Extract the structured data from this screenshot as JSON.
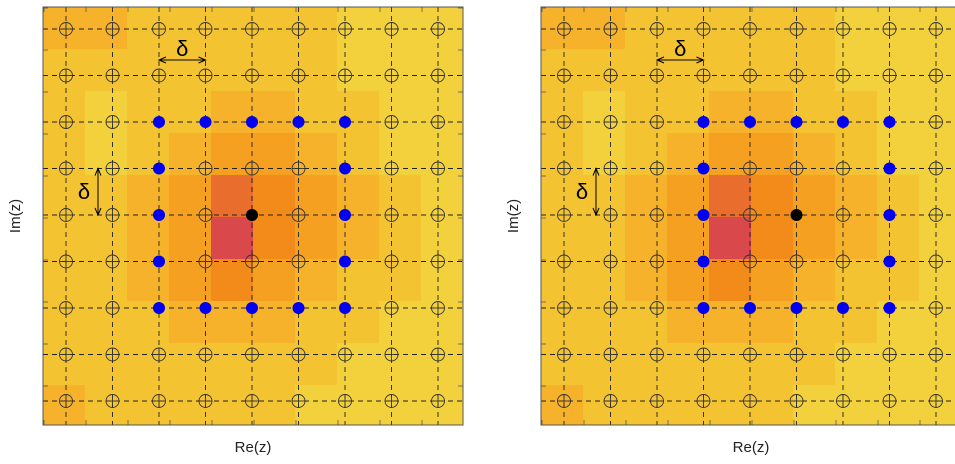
{
  "colors": {
    "background": "#ffffff",
    "panel_border": "#555555",
    "grid": "#222222",
    "open_marker": "#333333",
    "blue_marker": "#0000ee",
    "black_marker": "#000000",
    "heat_palette": [
      "#f2d13c",
      "#f4c332",
      "#f5b22a",
      "#f6a021",
      "#f38b1a",
      "#e96d2c",
      "#d9484a"
    ]
  },
  "panels": [
    {
      "id": "left",
      "xlabel": "Re(z)",
      "ylabel": "Im(z)",
      "delta_horizontal": "δ",
      "delta_vertical": "δ",
      "center": [
        5,
        5
      ],
      "ring_radius": 2,
      "heat_peak": [
        5,
        5
      ]
    },
    {
      "id": "right",
      "xlabel": "Re(z)",
      "ylabel": "Im(z)",
      "delta_horizontal": "δ",
      "delta_vertical": "δ",
      "center": [
        6,
        5
      ],
      "ring_radius": 2,
      "heat_peak": [
        5,
        5
      ]
    }
  ],
  "lattice": {
    "columns": 9,
    "rows": 9
  },
  "heat_levels": [
    [
      2,
      2,
      1,
      1,
      1,
      1,
      1,
      0,
      0,
      0
    ],
    [
      1,
      1,
      1,
      1,
      1,
      1,
      1,
      0,
      0,
      0
    ],
    [
      1,
      0,
      1,
      1,
      2,
      2,
      1,
      1,
      0,
      0
    ],
    [
      1,
      0,
      1,
      2,
      3,
      3,
      2,
      1,
      0,
      0
    ],
    [
      1,
      1,
      2,
      3,
      5,
      4,
      3,
      2,
      1,
      0
    ],
    [
      1,
      1,
      2,
      3,
      6,
      4,
      3,
      2,
      1,
      0
    ],
    [
      1,
      1,
      2,
      3,
      4,
      3,
      2,
      1,
      1,
      0
    ],
    [
      1,
      1,
      1,
      2,
      2,
      2,
      1,
      1,
      0,
      0
    ],
    [
      1,
      1,
      1,
      1,
      1,
      1,
      1,
      0,
      0,
      0
    ],
    [
      2,
      1,
      1,
      1,
      1,
      1,
      0,
      0,
      0,
      0
    ]
  ]
}
